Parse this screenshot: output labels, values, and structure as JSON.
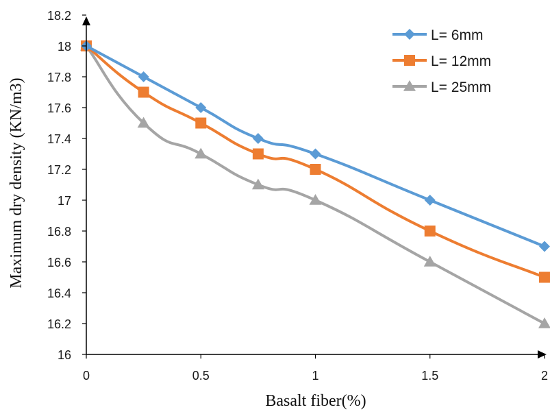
{
  "chart_data": {
    "type": "line",
    "xlabel": "Basalt fiber(%)",
    "ylabel": "Maximum dry density (KN/m3)",
    "xlim": [
      0,
      2
    ],
    "ylim": [
      16,
      18.2
    ],
    "x_ticks": [
      "0",
      "0.5",
      "1",
      "1.5",
      "2"
    ],
    "y_ticks": [
      "16",
      "16.2",
      "16.4",
      "16.6",
      "16.8",
      "17",
      "17.2",
      "17.4",
      "17.6",
      "17.8",
      "18",
      "18.2"
    ],
    "grid": false,
    "legend_position": "top-right",
    "x": [
      0,
      0.25,
      0.5,
      0.75,
      1,
      1.5,
      2
    ],
    "series": [
      {
        "name": "L= 6mm",
        "marker": "diamond",
        "color": "#5B9BD5",
        "values": [
          18.0,
          17.8,
          17.6,
          17.4,
          17.3,
          17.0,
          16.7
        ]
      },
      {
        "name": "L= 12mm",
        "marker": "square",
        "color": "#ED7D31",
        "values": [
          18.0,
          17.7,
          17.5,
          17.3,
          17.2,
          16.8,
          16.5
        ]
      },
      {
        "name": "L= 25mm",
        "marker": "triangle",
        "color": "#A5A5A5",
        "values": [
          18.0,
          17.5,
          17.3,
          17.1,
          17.0,
          16.6,
          16.2
        ]
      }
    ]
  }
}
